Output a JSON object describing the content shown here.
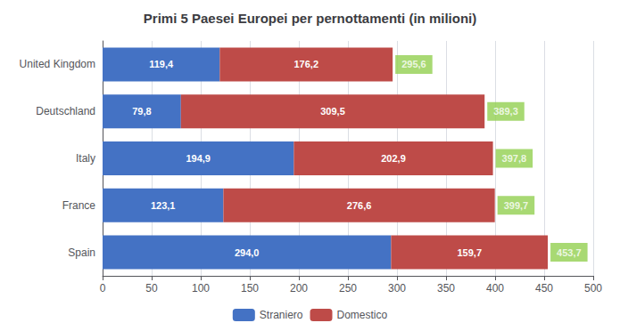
{
  "chart_data": {
    "type": "bar",
    "orientation": "horizontal",
    "stacked": true,
    "title": "Primi 5 Paesei Europei per pernottamenti (in milioni)",
    "categories": [
      "United Kingdom",
      "Deutschland",
      "Italy",
      "France",
      "Spain"
    ],
    "series": [
      {
        "name": "Straniero",
        "color": "#4472C4",
        "values": [
          119.4,
          79.8,
          194.9,
          123.1,
          294.0
        ],
        "value_labels": [
          "119,4",
          "79,8",
          "194,9",
          "123,1",
          "294,0"
        ]
      },
      {
        "name": "Domestico",
        "color": "#BE4B48",
        "values": [
          176.2,
          309.5,
          202.9,
          276.6,
          159.7
        ],
        "value_labels": [
          "176,2",
          "309,5",
          "202,9",
          "276,6",
          "159,7"
        ]
      }
    ],
    "totals": {
      "values": [
        295.6,
        389.3,
        397.8,
        399.7,
        453.7
      ],
      "value_labels": [
        "295,6",
        "389,3",
        "397,8",
        "399,7",
        "453,7"
      ],
      "color": "#92D050"
    },
    "xlim": [
      0,
      500
    ],
    "xticks": [
      0,
      50,
      100,
      150,
      200,
      250,
      300,
      350,
      400,
      450,
      500
    ],
    "grid": true,
    "data_labels": true,
    "legend": "bottom"
  }
}
